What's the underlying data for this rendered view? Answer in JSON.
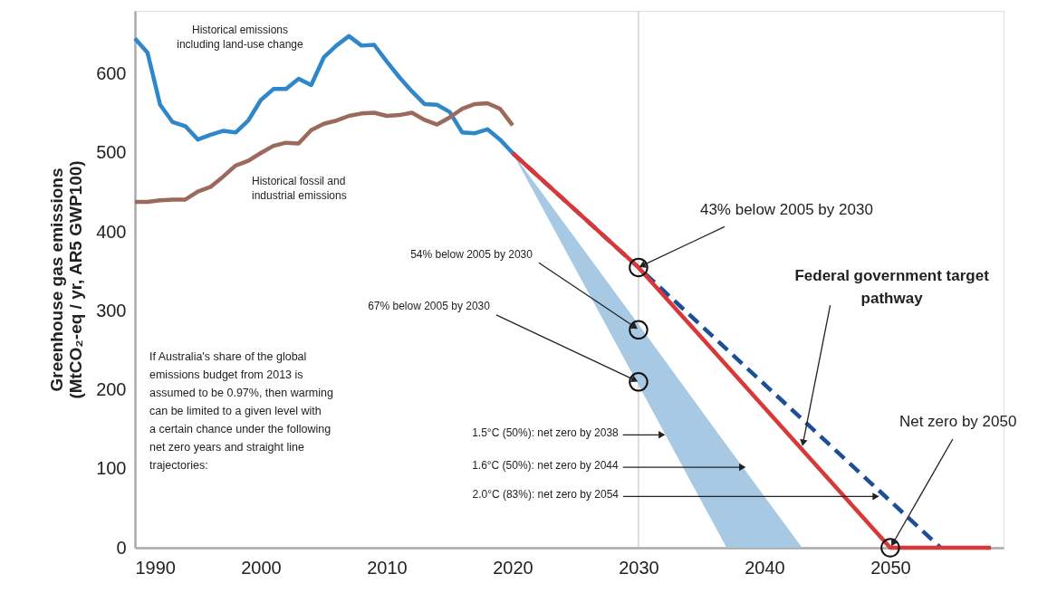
{
  "chart_data": {
    "type": "line",
    "ylabel": "Greenhouse gas emissions (MtCO₂-eq / yr, AR5 GWP100)",
    "xlim": [
      1990,
      2059
    ],
    "ylim": [
      0,
      680
    ],
    "xticks": [
      1990,
      2000,
      2010,
      2020,
      2030,
      2040,
      2050
    ],
    "yticks": [
      0,
      100,
      200,
      300,
      400,
      500,
      600
    ],
    "grid": false,
    "legend": false,
    "series": [
      {
        "name": "Historical emissions including land-use change",
        "color": "#2f87c9",
        "x": [
          1990,
          1991,
          1992,
          1993,
          1994,
          1995,
          1996,
          1997,
          1998,
          1999,
          2000,
          2001,
          2002,
          2003,
          2004,
          2005,
          2006,
          2007,
          2008,
          2009,
          2010,
          2011,
          2012,
          2013,
          2014,
          2015,
          2016,
          2017,
          2018,
          2019,
          2020
        ],
        "values": [
          645,
          627,
          561,
          539,
          534,
          517,
          523,
          528,
          526,
          541,
          567,
          581,
          581,
          594,
          586,
          621,
          636,
          648,
          636,
          637,
          616,
          596,
          578,
          562,
          561,
          552,
          526,
          525,
          530,
          517,
          500
        ]
      },
      {
        "name": "Historical fossil and industrial emissions",
        "color": "#9b6a5c",
        "x": [
          1990,
          1991,
          1992,
          1993,
          1994,
          1995,
          1996,
          1997,
          1998,
          1999,
          2000,
          2001,
          2002,
          2003,
          2004,
          2005,
          2006,
          2007,
          2008,
          2009,
          2010,
          2011,
          2012,
          2013,
          2014,
          2015,
          2016,
          2017,
          2018,
          2019,
          2020
        ],
        "values": [
          438,
          438,
          440,
          441,
          441,
          451,
          457,
          470,
          484,
          490,
          500,
          509,
          513,
          512,
          529,
          537,
          541,
          547,
          550,
          551,
          547,
          548,
          551,
          542,
          536,
          545,
          556,
          562,
          563,
          556,
          535
        ]
      },
      {
        "type": "area",
        "color": "#a7c9e3",
        "x": [
          2020,
          2030,
          2037,
          2043
        ],
        "values": [
          null,
          null,
          null,
          null
        ],
        "lower": [
          500,
          206,
          0,
          0
        ],
        "upper": [
          500,
          283,
          130,
          0
        ]
      },
      {
        "color": "#1d4f97",
        "line_style": "dashed",
        "x": [
          2020,
          2030,
          2054
        ],
        "values": [
          500,
          355,
          0
        ]
      },
      {
        "color": "#d93838",
        "x": [
          2020,
          2030,
          2050,
          2058
        ],
        "values": [
          500,
          355,
          0,
          0
        ]
      },
      {
        "type": "scatter",
        "marker": "circle",
        "color": "#111111",
        "x": [
          2030,
          2030,
          2030,
          2050
        ],
        "values": [
          355,
          276,
          210,
          0
        ]
      }
    ],
    "ref_lines": [
      {
        "axis": "x",
        "value": 2030,
        "color": "#c8c8c8"
      }
    ],
    "annotations": [
      {
        "text": "43% below 2005 by 2030",
        "x": 2030,
        "y": 355
      },
      {
        "text": "54% below 2005 by 2030",
        "x": 2030,
        "y": 276
      },
      {
        "text": "67% below 2005 by 2030",
        "x": 2030,
        "y": 210
      },
      {
        "text": "Federal government target pathway",
        "x": 2043,
        "y": 126
      },
      {
        "text": "Net zero by 2050",
        "x": 2050,
        "y": 0
      },
      {
        "text": "1.5°C (50%): net zero by 2038",
        "x": 2032,
        "y": 143
      },
      {
        "text": "1.6°C (50%): net zero by 2044",
        "x": 2038.4,
        "y": 102
      },
      {
        "text": "2.0°C (83%): net zero by 2054",
        "x": 2049,
        "y": 65
      },
      "If Australia's share of the global emissions budget from 2013 is assumed to be 0.97%, then warming can be limited to a given level with a certain chance under the following net zero years and straight line trajectories:"
    ]
  }
}
